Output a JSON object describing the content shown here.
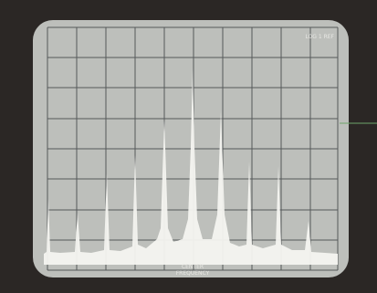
{
  "screen": {
    "top_right_label": "LOG 1 REF",
    "bottom_label_line1": "CENTER",
    "bottom_label_line2": "FREQUENCY"
  }
}
